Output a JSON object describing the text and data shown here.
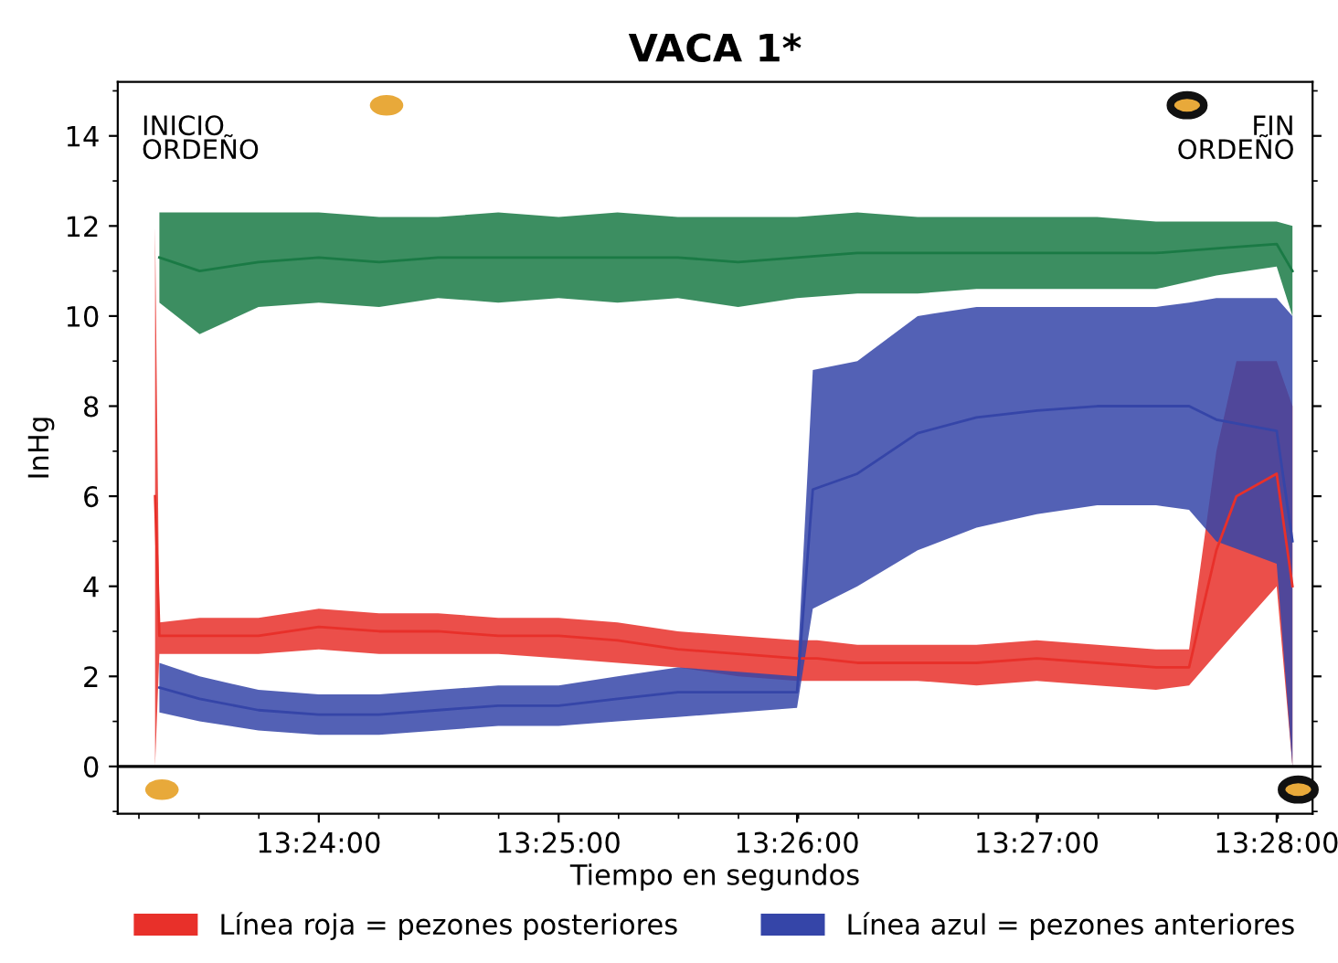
{
  "chart_data": {
    "type": "line",
    "title": "VACA 1*",
    "xlabel": "Tiempo en segundos",
    "ylabel": "InHg",
    "annotations": [
      "INICIO\nORDEÑO",
      "FIN\nORDEÑO"
    ],
    "xlim": [
      13.386,
      13.4692
    ],
    "ylim": [
      -1.05,
      15.2
    ],
    "xticks": [
      {
        "value": 13.4,
        "label": "13:24:00"
      },
      {
        "value": 13.4167,
        "label": "13:25:00"
      },
      {
        "value": 13.4333,
        "label": "13:26:00"
      },
      {
        "value": 13.45,
        "label": "13:27:00"
      },
      {
        "value": 13.4667,
        "label": "13:28:00"
      }
    ],
    "yticks": [
      0,
      2,
      4,
      6,
      8,
      10,
      12,
      14
    ],
    "grid": false,
    "legend": "bottom",
    "marker": "none",
    "line_style": "solid",
    "ref_lines": [
      {
        "axis": "y",
        "value": 0,
        "label": null,
        "color": "#000000"
      }
    ],
    "series": [
      {
        "color": "#1a7a45",
        "x": [
          13.3889,
          13.3917,
          13.3958,
          13.4,
          13.4042,
          13.4083,
          13.4125,
          13.4167,
          13.4208,
          13.425,
          13.4292,
          13.4333,
          13.4375,
          13.4417,
          13.4458,
          13.45,
          13.4542,
          13.4583,
          13.4625,
          13.4667,
          13.4678
        ],
        "values": [
          11.3,
          11.0,
          11.2,
          11.3,
          11.2,
          11.3,
          11.3,
          11.3,
          11.3,
          11.3,
          11.2,
          11.3,
          11.4,
          11.4,
          11.4,
          11.4,
          11.4,
          11.4,
          11.5,
          11.6,
          11.0
        ],
        "lower": [
          10.3,
          9.6,
          10.2,
          10.3,
          10.2,
          10.4,
          10.3,
          10.4,
          10.3,
          10.4,
          10.2,
          10.4,
          10.5,
          10.5,
          10.6,
          10.6,
          10.6,
          10.6,
          10.9,
          11.1,
          10.0
        ],
        "upper": [
          12.3,
          12.3,
          12.3,
          12.3,
          12.2,
          12.2,
          12.3,
          12.2,
          12.3,
          12.2,
          12.2,
          12.2,
          12.3,
          12.2,
          12.2,
          12.2,
          12.2,
          12.1,
          12.1,
          12.1,
          12.0
        ]
      },
      {
        "name": "Línea roja = pezones posteriores",
        "color": "#e8302a",
        "x": [
          13.3886,
          13.3889,
          13.3917,
          13.3958,
          13.4,
          13.4042,
          13.4083,
          13.4125,
          13.4167,
          13.4208,
          13.425,
          13.4292,
          13.4333,
          13.4347,
          13.4375,
          13.4417,
          13.4458,
          13.45,
          13.4542,
          13.4583,
          13.4606,
          13.4625,
          13.4639,
          13.4667,
          13.4678
        ],
        "values": [
          6.0,
          2.9,
          2.9,
          2.9,
          3.1,
          3.0,
          3.0,
          2.9,
          2.9,
          2.8,
          2.6,
          2.5,
          2.4,
          2.4,
          2.3,
          2.3,
          2.3,
          2.4,
          2.3,
          2.2,
          2.2,
          4.8,
          6.0,
          6.5,
          4.0
        ],
        "lower": [
          0,
          2.5,
          2.5,
          2.5,
          2.6,
          2.5,
          2.5,
          2.5,
          2.4,
          2.3,
          2.2,
          2.0,
          1.9,
          1.9,
          1.9,
          1.9,
          1.8,
          1.9,
          1.8,
          1.7,
          1.8,
          2.5,
          3.0,
          4.0,
          0
        ],
        "upper": [
          12.0,
          3.2,
          3.3,
          3.3,
          3.5,
          3.4,
          3.4,
          3.3,
          3.3,
          3.2,
          3.0,
          2.9,
          2.8,
          2.8,
          2.7,
          2.7,
          2.7,
          2.8,
          2.7,
          2.6,
          2.6,
          7.0,
          9.0,
          9.0,
          8.0
        ]
      },
      {
        "name": "Línea azul = pezones anteriores",
        "color": "#3545a8",
        "x": [
          13.3889,
          13.3917,
          13.3958,
          13.4,
          13.4042,
          13.4083,
          13.4125,
          13.4167,
          13.4208,
          13.425,
          13.4292,
          13.4333,
          13.4344,
          13.4375,
          13.4417,
          13.4458,
          13.45,
          13.4542,
          13.4583,
          13.4606,
          13.4625,
          13.4667,
          13.4678
        ],
        "values": [
          1.75,
          1.5,
          1.25,
          1.15,
          1.15,
          1.25,
          1.35,
          1.35,
          1.5,
          1.65,
          1.65,
          1.65,
          6.15,
          6.5,
          7.4,
          7.75,
          7.9,
          8.0,
          8.0,
          8.0,
          7.7,
          7.45,
          5.0
        ],
        "lower": [
          1.2,
          1.0,
          0.8,
          0.7,
          0.7,
          0.8,
          0.9,
          0.9,
          1.0,
          1.1,
          1.2,
          1.3,
          3.5,
          4.0,
          4.8,
          5.3,
          5.6,
          5.8,
          5.8,
          5.7,
          5.0,
          4.5,
          0
        ],
        "upper": [
          2.3,
          2.0,
          1.7,
          1.6,
          1.6,
          1.7,
          1.8,
          1.8,
          2.0,
          2.2,
          2.1,
          2.0,
          8.8,
          9.0,
          10.0,
          10.2,
          10.2,
          10.2,
          10.2,
          10.3,
          10.4,
          10.4,
          10.0
        ]
      }
    ]
  }
}
